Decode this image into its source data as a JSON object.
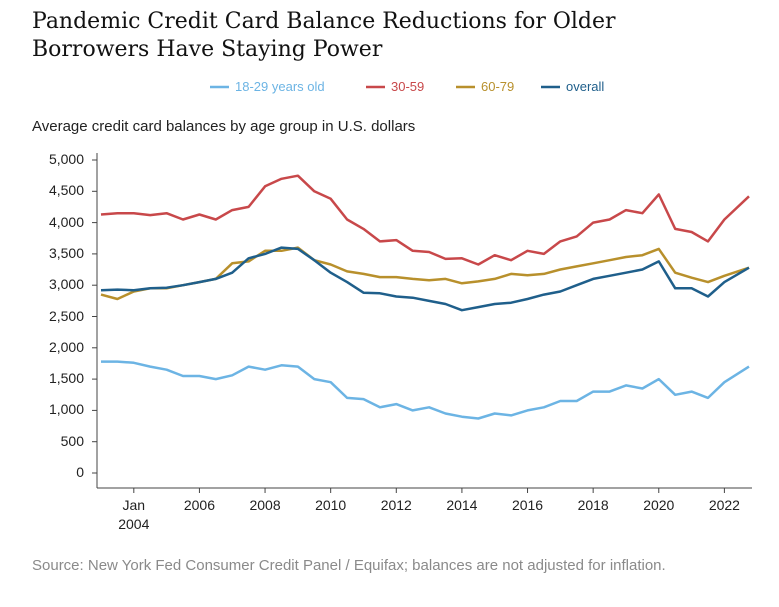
{
  "chart_data": {
    "type": "line",
    "title": "Pandemic Credit Card Balance Reductions for Older Borrowers Have Staying Power",
    "subtitle": "Average credit card balances by age group in U.S. dollars",
    "source": "Source: New York Fed Consumer Credit Panel / Equifax; balances are not adjusted for inflation.",
    "x": [
      2003,
      2003.5,
      2004,
      2004.5,
      2005,
      2005.5,
      2006,
      2006.5,
      2007,
      2007.5,
      2008,
      2008.5,
      2009,
      2009.5,
      2010,
      2010.5,
      2011,
      2011.5,
      2012,
      2012.5,
      2013,
      2013.5,
      2014,
      2014.5,
      2015,
      2015.5,
      2016,
      2016.5,
      2017,
      2017.5,
      2018,
      2018.5,
      2019,
      2019.5,
      2020,
      2020.5,
      2021,
      2021.5,
      2022,
      2022.75
    ],
    "series": [
      {
        "name": "18-29 years old",
        "color": "#6cb4e4",
        "values": [
          1780,
          1780,
          1760,
          1700,
          1650,
          1550,
          1550,
          1500,
          1560,
          1700,
          1650,
          1720,
          1700,
          1500,
          1450,
          1200,
          1180,
          1050,
          1100,
          1000,
          1050,
          950,
          900,
          870,
          950,
          920,
          1000,
          1050,
          1150,
          1150,
          1300,
          1300,
          1400,
          1350,
          1500,
          1250,
          1300,
          1200,
          1450,
          1700
        ]
      },
      {
        "name": "30-59",
        "color": "#c8484a",
        "values": [
          4130,
          4150,
          4150,
          4120,
          4150,
          4050,
          4130,
          4050,
          4200,
          4250,
          4580,
          4700,
          4750,
          4500,
          4380,
          4050,
          3900,
          3700,
          3720,
          3550,
          3530,
          3420,
          3430,
          3330,
          3480,
          3400,
          3550,
          3500,
          3700,
          3780,
          4000,
          4050,
          4200,
          4150,
          4450,
          3900,
          3850,
          3700,
          4050,
          4420
        ]
      },
      {
        "name": "60-79",
        "color": "#b8902c",
        "values": [
          2850,
          2780,
          2900,
          2950,
          2950,
          3000,
          3050,
          3100,
          3350,
          3380,
          3550,
          3550,
          3600,
          3400,
          3330,
          3220,
          3180,
          3130,
          3130,
          3100,
          3080,
          3100,
          3030,
          3060,
          3100,
          3180,
          3160,
          3180,
          3250,
          3300,
          3350,
          3400,
          3450,
          3480,
          3580,
          3200,
          3120,
          3050,
          3150,
          3280
        ]
      },
      {
        "name": "overall",
        "color": "#1f5f8b",
        "values": [
          2920,
          2930,
          2920,
          2950,
          2960,
          3000,
          3050,
          3100,
          3200,
          3430,
          3500,
          3600,
          3580,
          3400,
          3200,
          3050,
          2880,
          2870,
          2820,
          2800,
          2750,
          2700,
          2600,
          2650,
          2700,
          2720,
          2780,
          2850,
          2900,
          3000,
          3100,
          3150,
          3200,
          3250,
          3380,
          2950,
          2950,
          2820,
          3050,
          3280
        ]
      }
    ],
    "xlim": [
      2003,
      2022.75
    ],
    "xticks": [
      {
        "value": 2004,
        "label": "Jan 2004"
      },
      2006,
      2008,
      2010,
      2012,
      2014,
      2016,
      2018,
      2020,
      2022
    ],
    "ylim": [
      0,
      5000
    ],
    "yticks": [
      0,
      500,
      {
        "value": 1000,
        "label": "1,000"
      },
      {
        "value": 1500,
        "label": "1,500"
      },
      {
        "value": 2000,
        "label": "2,000"
      },
      {
        "value": 2500,
        "label": "2,500"
      },
      {
        "value": 3000,
        "label": "3,000"
      },
      {
        "value": 3500,
        "label": "3,500"
      },
      {
        "value": 4000,
        "label": "4,000"
      },
      {
        "value": 4500,
        "label": "4,500"
      },
      {
        "value": 5000,
        "label": "5,000"
      }
    ],
    "legend": "top"
  }
}
